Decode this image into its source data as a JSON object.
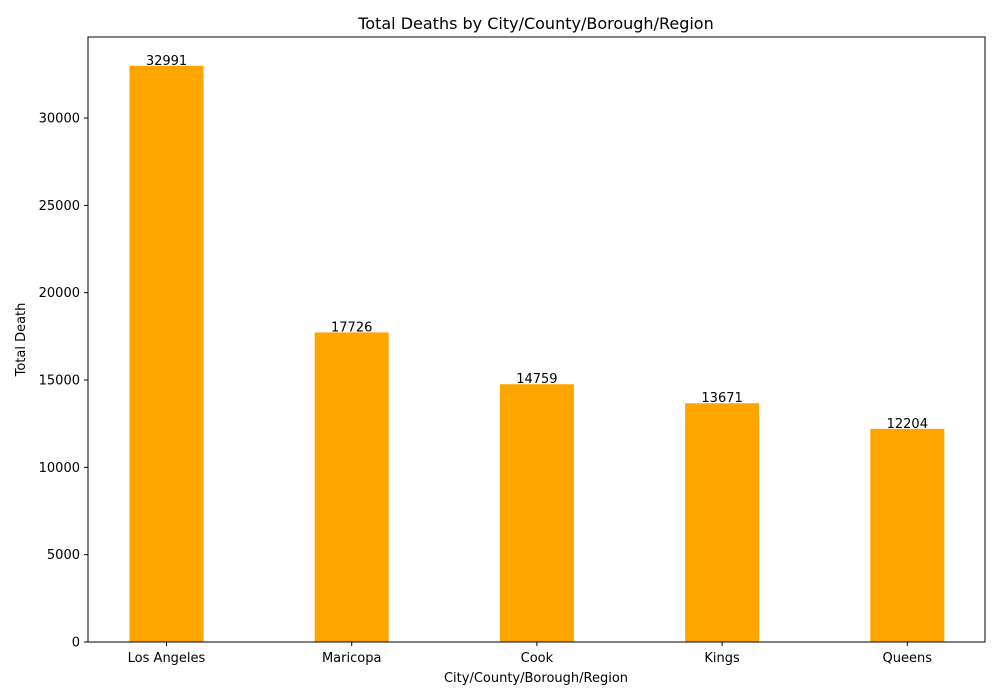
{
  "chart_data": {
    "type": "bar",
    "title": "Total Deaths by City/County/Borough/Region",
    "xlabel": "City/County/Borough/Region",
    "ylabel": "Total Death",
    "categories": [
      "Los Angeles",
      "Maricopa",
      "Cook",
      "Kings",
      "Queens"
    ],
    "values": [
      32991,
      17726,
      14759,
      13671,
      12204
    ],
    "data_labels": [
      "32991",
      "17726",
      "14759",
      "13671",
      "12204"
    ],
    "ylim": [
      0,
      34640
    ],
    "yticks": [
      0,
      5000,
      10000,
      15000,
      20000,
      25000,
      30000
    ],
    "ytick_labels": [
      "0",
      "5000",
      "10000",
      "15000",
      "20000",
      "25000",
      "30000"
    ],
    "bar_color": "#FFA500",
    "grid": false,
    "legend": "none"
  }
}
